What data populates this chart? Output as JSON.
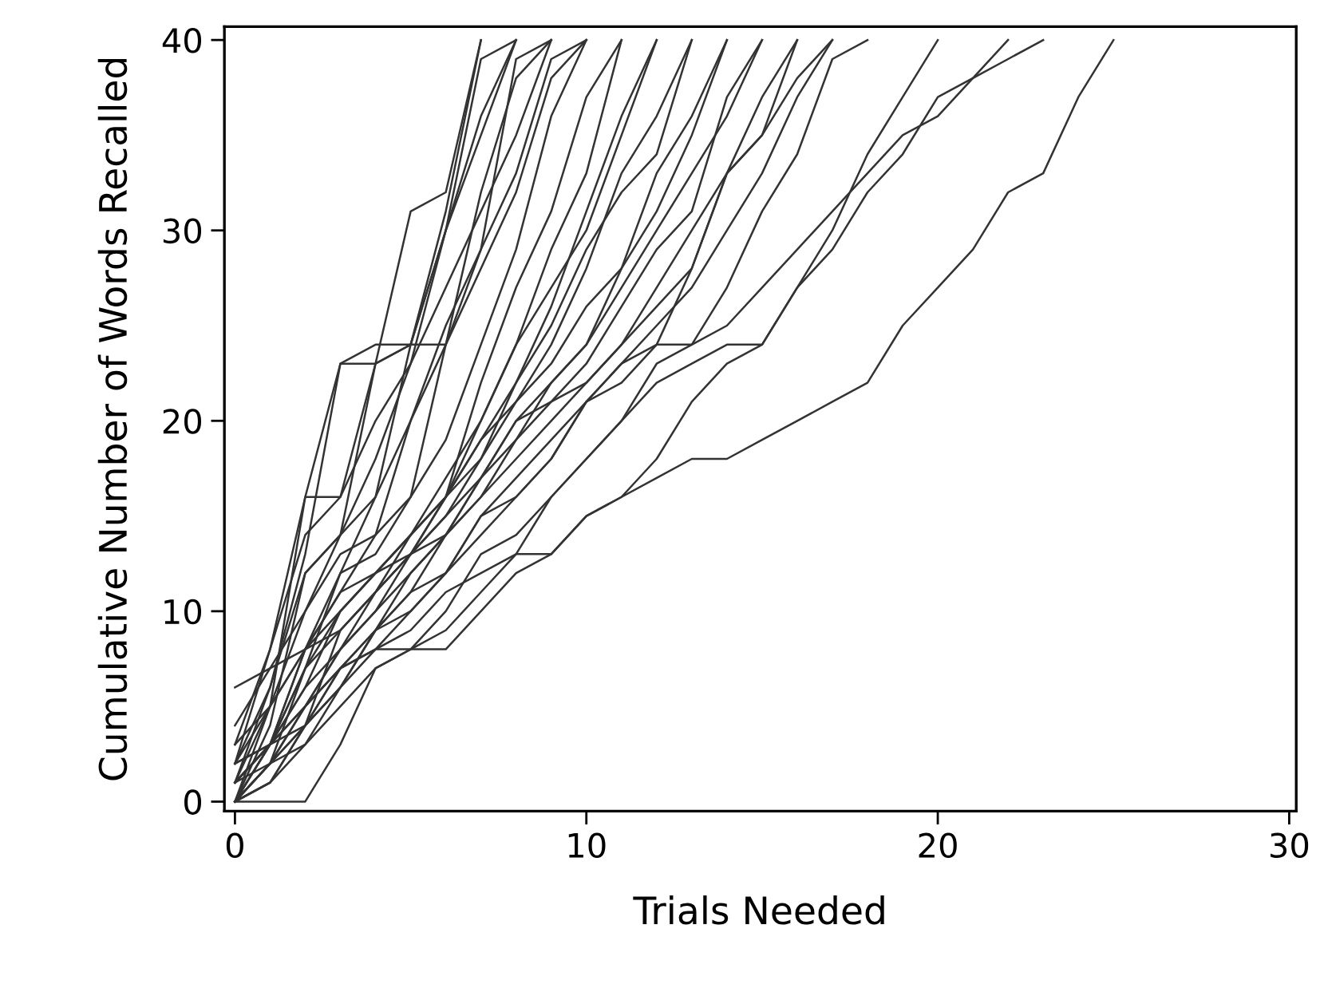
{
  "chart_data": {
    "type": "line",
    "xlabel": "Trials Needed",
    "ylabel": "Cumulative Number of Words Recalled",
    "x": [
      0,
      1,
      2,
      3,
      4,
      5,
      6,
      7,
      8,
      9,
      10,
      11,
      12,
      13,
      14,
      15,
      16,
      17,
      18,
      19,
      20,
      21,
      22,
      23,
      24,
      25
    ],
    "xlim": [
      -0.3,
      30.2
    ],
    "ylim": [
      -0.5,
      40.7
    ],
    "xticks": [
      0,
      10,
      20,
      30
    ],
    "yticks": [
      0,
      10,
      20,
      30,
      40
    ],
    "grid": false,
    "marker": "none",
    "line_style": "solid",
    "series": [
      {
        "color": "#333333",
        "values": [
          0,
          5,
          16,
          23,
          24,
          24,
          31,
          40,
          null,
          null,
          null,
          null,
          null,
          null,
          null,
          null,
          null,
          null,
          null,
          null,
          null,
          null,
          null,
          null,
          null,
          null
        ]
      },
      {
        "color": "#333333",
        "values": [
          2,
          8,
          16,
          16,
          23,
          31,
          32,
          40,
          null,
          null,
          null,
          null,
          null,
          null,
          null,
          null,
          null,
          null,
          null,
          null,
          null,
          null,
          null,
          null,
          null,
          null
        ]
      },
      {
        "color": "#333333",
        "values": [
          1,
          6,
          13,
          23,
          23,
          24,
          30,
          35,
          40,
          null,
          null,
          null,
          null,
          null,
          null,
          null,
          null,
          null,
          null,
          null,
          null,
          null,
          null,
          null,
          null,
          null
        ]
      },
      {
        "color": "#333333",
        "values": [
          0,
          4,
          12,
          14,
          23,
          24,
          30,
          39,
          40,
          null,
          null,
          null,
          null,
          null,
          null,
          null,
          null,
          null,
          null,
          null,
          null,
          null,
          null,
          null,
          null,
          null
        ]
      },
      {
        "color": "#333333",
        "values": [
          3,
          8,
          14,
          16,
          20,
          23,
          30,
          36,
          40,
          null,
          null,
          null,
          null,
          null,
          null,
          null,
          null,
          null,
          null,
          null,
          null,
          null,
          null,
          null,
          null,
          null
        ]
      },
      {
        "color": "#333333",
        "values": [
          1,
          5,
          10,
          14,
          16,
          24,
          24,
          29,
          39,
          40,
          null,
          null,
          null,
          null,
          null,
          null,
          null,
          null,
          null,
          null,
          null,
          null,
          null,
          null,
          null,
          null
        ]
      },
      {
        "color": "#333333",
        "values": [
          0,
          3,
          8,
          12,
          16,
          20,
          24,
          32,
          38,
          40,
          null,
          null,
          null,
          null,
          null,
          null,
          null,
          null,
          null,
          null,
          null,
          null,
          null,
          null,
          null,
          null
        ]
      },
      {
        "color": "#333333",
        "values": [
          2,
          6,
          12,
          14,
          18,
          23,
          27,
          31,
          35,
          40,
          null,
          null,
          null,
          null,
          null,
          null,
          null,
          null,
          null,
          null,
          null,
          null,
          null,
          null,
          null,
          null
        ]
      },
      {
        "color": "#333333",
        "values": [
          0,
          2,
          7,
          12,
          13,
          16,
          24,
          28,
          32,
          38,
          40,
          null,
          null,
          null,
          null,
          null,
          null,
          null,
          null,
          null,
          null,
          null,
          null,
          null,
          null,
          null
        ]
      },
      {
        "color": "#333333",
        "values": [
          4,
          7,
          10,
          13,
          14,
          20,
          25,
          29,
          33,
          39,
          40,
          null,
          null,
          null,
          null,
          null,
          null,
          null,
          null,
          null,
          null,
          null,
          null,
          null,
          null,
          null
        ]
      },
      {
        "color": "#333333",
        "values": [
          1,
          3,
          8,
          11,
          14,
          16,
          19,
          24,
          29,
          36,
          40,
          null,
          null,
          null,
          null,
          null,
          null,
          null,
          null,
          null,
          null,
          null,
          null,
          null,
          null,
          null
        ]
      },
      {
        "color": "#333333",
        "values": [
          0,
          3,
          6,
          10,
          12,
          14,
          16,
          20,
          24,
          29,
          33,
          40,
          null,
          null,
          null,
          null,
          null,
          null,
          null,
          null,
          null,
          null,
          null,
          null,
          null,
          null
        ]
      },
      {
        "color": "#333333",
        "values": [
          2,
          5,
          8,
          11,
          12,
          14,
          16,
          22,
          27,
          31,
          37,
          40,
          null,
          null,
          null,
          null,
          null,
          null,
          null,
          null,
          null,
          null,
          null,
          null,
          null,
          null
        ]
      },
      {
        "color": "#333333",
        "values": [
          0,
          2,
          5,
          8,
          11,
          13,
          16,
          19,
          22,
          26,
          31,
          36,
          40,
          null,
          null,
          null,
          null,
          null,
          null,
          null,
          null,
          null,
          null,
          null,
          null,
          null
        ]
      },
      {
        "color": "#333333",
        "values": [
          1,
          3,
          7,
          10,
          12,
          14,
          17,
          20,
          24,
          27,
          30,
          35,
          40,
          null,
          null,
          null,
          null,
          null,
          null,
          null,
          null,
          null,
          null,
          null,
          null,
          null
        ]
      },
      {
        "color": "#333333",
        "values": [
          0,
          3,
          4,
          9,
          11,
          13,
          15,
          18,
          22,
          25,
          29,
          32,
          34,
          40,
          null,
          null,
          null,
          null,
          null,
          null,
          null,
          null,
          null,
          null,
          null,
          null
        ]
      },
      {
        "color": "#333333",
        "values": [
          6,
          7,
          8,
          10,
          12,
          13,
          16,
          19,
          21,
          24,
          28,
          33,
          36,
          40,
          null,
          null,
          null,
          null,
          null,
          null,
          null,
          null,
          null,
          null,
          null,
          null
        ]
      },
      {
        "color": "#333333",
        "values": [
          0,
          1,
          4,
          7,
          9,
          11,
          14,
          17,
          20,
          22,
          24,
          28,
          33,
          36,
          40,
          null,
          null,
          null,
          null,
          null,
          null,
          null,
          null,
          null,
          null,
          null
        ]
      },
      {
        "color": "#333333",
        "values": [
          2,
          3,
          7,
          9,
          11,
          14,
          16,
          18,
          21,
          23,
          26,
          28,
          31,
          35,
          40,
          null,
          null,
          null,
          null,
          null,
          null,
          null,
          null,
          null,
          null,
          null
        ]
      },
      {
        "color": "#333333",
        "values": [
          0,
          2,
          3,
          6,
          9,
          12,
          14,
          16,
          19,
          22,
          24,
          27,
          30,
          33,
          36,
          40,
          null,
          null,
          null,
          null,
          null,
          null,
          null,
          null,
          null,
          null
        ]
      },
      {
        "color": "#333333",
        "values": [
          1,
          3,
          5,
          8,
          10,
          13,
          15,
          17,
          20,
          21,
          23,
          26,
          29,
          31,
          37,
          40,
          null,
          null,
          null,
          null,
          null,
          null,
          null,
          null,
          null,
          null
        ]
      },
      {
        "color": "#333333",
        "values": [
          0,
          2,
          5,
          7,
          9,
          10,
          12,
          15,
          16,
          18,
          21,
          23,
          24,
          28,
          33,
          35,
          40,
          null,
          null,
          null,
          null,
          null,
          null,
          null,
          null,
          null
        ]
      },
      {
        "color": "#333333",
        "values": [
          3,
          5,
          8,
          9,
          11,
          13,
          14,
          17,
          19,
          21,
          22,
          24,
          27,
          30,
          33,
          37,
          40,
          null,
          null,
          null,
          null,
          null,
          null,
          null,
          null,
          null
        ]
      },
      {
        "color": "#333333",
        "values": [
          0,
          1,
          4,
          6,
          9,
          11,
          12,
          15,
          17,
          19,
          21,
          23,
          25,
          27,
          30,
          33,
          37,
          40,
          null,
          null,
          null,
          null,
          null,
          null,
          null,
          null
        ]
      },
      {
        "color": "#333333",
        "values": [
          1,
          3,
          6,
          8,
          10,
          12,
          14,
          16,
          18,
          20,
          22,
          24,
          26,
          28,
          33,
          35,
          38,
          40,
          null,
          null,
          null,
          null,
          null,
          null,
          null,
          null
        ]
      },
      {
        "color": "#333333",
        "values": [
          0,
          2,
          4,
          7,
          8,
          10,
          12,
          14,
          16,
          18,
          21,
          22,
          24,
          24,
          27,
          31,
          34,
          39,
          40,
          null,
          null,
          null,
          null,
          null,
          null,
          null
        ]
      },
      {
        "color": "#333333",
        "values": [
          2,
          3,
          5,
          7,
          8,
          8,
          10,
          13,
          14,
          16,
          18,
          20,
          22,
          23,
          24,
          24,
          27,
          30,
          34,
          37,
          40,
          null,
          null,
          null,
          null,
          null
        ]
      },
      {
        "color": "#333333",
        "values": [
          0,
          1,
          3,
          5,
          7,
          8,
          9,
          11,
          13,
          13,
          15,
          16,
          18,
          21,
          23,
          24,
          27,
          29,
          32,
          34,
          37,
          38,
          40,
          null,
          null,
          null
        ]
      },
      {
        "color": "#333333",
        "values": [
          1,
          2,
          4,
          6,
          8,
          9,
          11,
          12,
          13,
          16,
          18,
          20,
          23,
          24,
          25,
          27,
          29,
          31,
          33,
          35,
          36,
          38,
          39,
          40,
          null,
          null
        ]
      },
      {
        "color": "#333333",
        "values": [
          0,
          0,
          0,
          3,
          7,
          8,
          8,
          10,
          12,
          13,
          15,
          16,
          17,
          18,
          18,
          19,
          20,
          21,
          22,
          25,
          27,
          29,
          32,
          33,
          37,
          40
        ]
      }
    ]
  }
}
